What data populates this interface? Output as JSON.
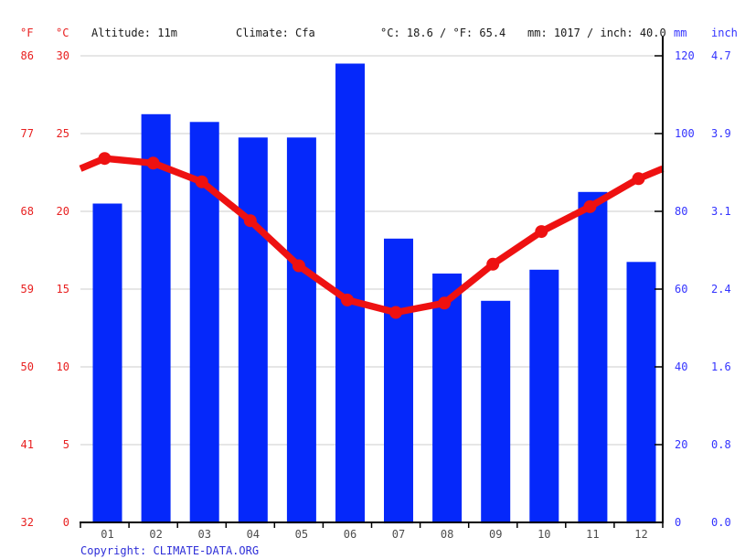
{
  "header": {
    "temp_unit_f": "°F",
    "temp_unit_c": "°C",
    "altitude": "Altitude: 11m",
    "climate": "Climate: Cfa",
    "avg_temp": "°C: 18.6 / °F: 65.4",
    "annual_precip": "mm: 1017 / inch: 40.0",
    "precip_unit_mm": "mm",
    "precip_unit_inch": "inch"
  },
  "axes": {
    "temp_f_ticks": [
      "86",
      "77",
      "68",
      "59",
      "50",
      "41",
      "32"
    ],
    "temp_c_ticks": [
      "30",
      "25",
      "20",
      "15",
      "10",
      "5",
      "0"
    ],
    "precip_mm_ticks": [
      "120",
      "100",
      "80",
      "60",
      "40",
      "20",
      "0"
    ],
    "precip_inch_ticks": [
      "4.7",
      "3.9",
      "3.1",
      "2.4",
      "1.6",
      "0.8",
      "0.0"
    ]
  },
  "chart_data": {
    "type": "bar+line climograph",
    "categories": [
      "01",
      "02",
      "03",
      "04",
      "05",
      "06",
      "07",
      "08",
      "09",
      "10",
      "11",
      "12"
    ],
    "series": [
      {
        "name": "Precipitation (mm)",
        "type": "bar",
        "color": "#0528fa",
        "values": [
          82,
          105,
          103,
          99,
          99,
          118,
          73,
          64,
          57,
          65,
          85,
          67
        ]
      },
      {
        "name": "Mean temperature (°C)",
        "type": "line",
        "color": "#ee1111",
        "values": [
          23.4,
          23.1,
          21.9,
          19.4,
          16.5,
          14.3,
          13.5,
          14.1,
          16.6,
          18.7,
          20.3,
          22.1
        ]
      }
    ],
    "temp_axis_range_c": [
      0,
      30
    ],
    "precip_axis_range_mm": [
      0,
      120
    ],
    "grid": true,
    "legend": "none",
    "title": "",
    "xlabel": "",
    "ylabel_left": "°C / °F",
    "ylabel_right": "mm / inch"
  },
  "footer": {
    "copyright_label": "Copyright:",
    "link": "CLIMATE-DATA.ORG"
  },
  "colors": {
    "bar_blue": "#0528fa",
    "line_red": "#ee1111",
    "axis_text_red": "#e82020",
    "axis_text_blue": "#3333ff",
    "month_gray": "#4d4d4d",
    "grid_gray": "#cccccc",
    "axis_black": "#000000",
    "copyright_blue": "#2e2ed8"
  }
}
